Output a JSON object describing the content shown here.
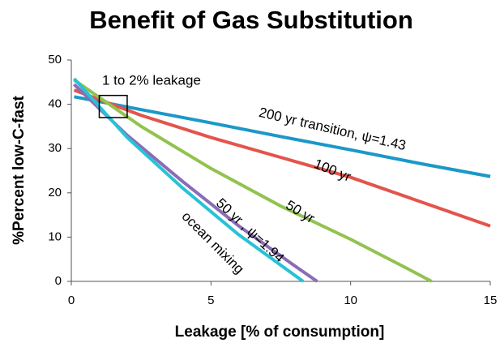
{
  "chart_data": {
    "type": "line",
    "title": "Benefit of Gas Substitution",
    "x_label": "Leakage [% of consumption]",
    "y_label": "%Percent low-C-fast",
    "xlim": [
      0,
      15
    ],
    "xticks": [
      0,
      5,
      10,
      15
    ],
    "ylim": [
      0,
      50
    ],
    "yticks": [
      0,
      10,
      20,
      30,
      40,
      50
    ],
    "grid": false,
    "annotation": {
      "text": "1 to 2% leakage",
      "box_x": [
        1,
        2
      ],
      "box_y": [
        37,
        42
      ]
    },
    "series": [
      {
        "name": "200 yr transition, ψ=1.43",
        "color": "#1b98c8",
        "x": [
          0.1,
          2.5,
          5,
          7.5,
          10,
          12.5,
          15
        ],
        "values": [
          41.7,
          38.8,
          35.8,
          32.7,
          29.7,
          26.6,
          23.7
        ]
      },
      {
        "name": "100 yr",
        "color": "#e3544c",
        "x": [
          0.1,
          2.5,
          5,
          7.5,
          10,
          12.5,
          15
        ],
        "values": [
          43.2,
          37.5,
          32.5,
          28,
          23.5,
          18,
          12.5
        ]
      },
      {
        "name": "50 yr",
        "color": "#92c24f",
        "x": [
          0.1,
          2.5,
          5,
          7.5,
          10,
          12,
          12.9
        ],
        "values": [
          45.5,
          35,
          25.5,
          17,
          9.5,
          3,
          0
        ]
      },
      {
        "name": "50 yr , ψ=1.94",
        "color": "#8b6cb5",
        "x": [
          0.1,
          2,
          4,
          6,
          8,
          8.8
        ],
        "values": [
          44.5,
          33,
          22.5,
          12.5,
          3.5,
          0
        ]
      },
      {
        "name": "ocean mixing",
        "color": "#27c2d8",
        "x": [
          0.1,
          2,
          4,
          6,
          8.3
        ],
        "values": [
          45.8,
          32.5,
          21,
          10.5,
          0
        ]
      }
    ]
  }
}
